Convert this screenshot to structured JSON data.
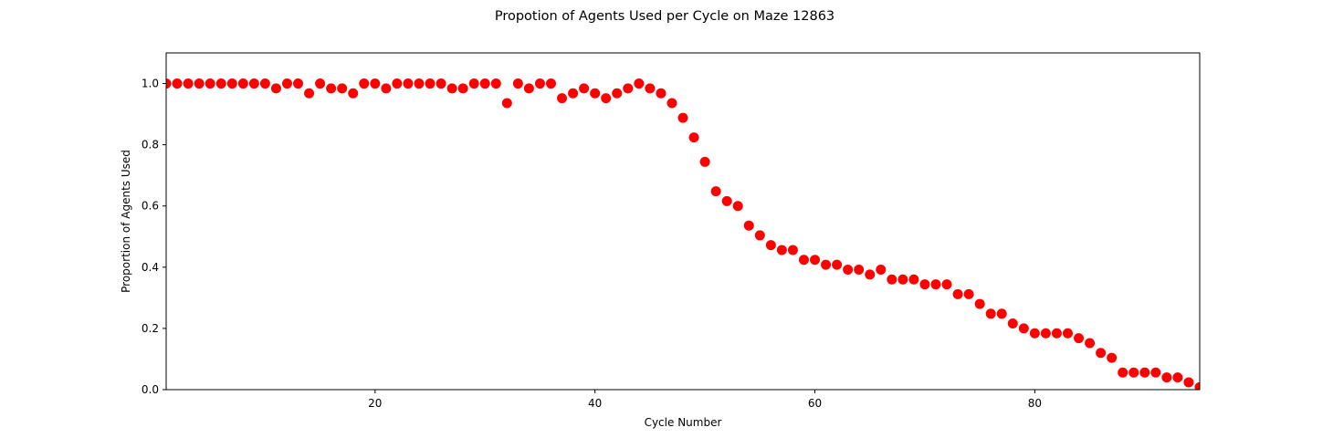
{
  "chart_data": {
    "type": "scatter",
    "title": "Propotion of Agents Used per Cycle on Maze 12863",
    "xlabel": "Cycle Number",
    "ylabel": "Proportion of Agents Used",
    "xlim": [
      1,
      95
    ],
    "ylim": [
      0,
      1.1
    ],
    "xticks": [
      20,
      40,
      60,
      80
    ],
    "yticks": [
      0.0,
      0.2,
      0.4,
      0.6,
      0.8,
      1.0
    ],
    "marker_color": "#ff0000",
    "grid": false,
    "series": [
      {
        "x": [
          1,
          2,
          3,
          4,
          5,
          6,
          7,
          8,
          9,
          10,
          11,
          12,
          13,
          14,
          15,
          16,
          17,
          18,
          19,
          20,
          21,
          22,
          23,
          24,
          25,
          26,
          27,
          28,
          29,
          30,
          31,
          32,
          33,
          34,
          35,
          36,
          37,
          38,
          39,
          40,
          41,
          42,
          43,
          44,
          45,
          46,
          47,
          48,
          49,
          50,
          51,
          52,
          53,
          54,
          55,
          56,
          57,
          58,
          59,
          60,
          61,
          62,
          63,
          64,
          65,
          66,
          67,
          68,
          69,
          70,
          71,
          72,
          73,
          74,
          75,
          76,
          77,
          78,
          79,
          80,
          81,
          82,
          83,
          84,
          85,
          86,
          87,
          88,
          89,
          90,
          91,
          92,
          93,
          94,
          95
        ],
        "y": [
          1.0,
          1.0,
          1.0,
          1.0,
          1.0,
          1.0,
          1.0,
          1.0,
          1.0,
          1.0,
          0.984,
          1.0,
          1.0,
          0.968,
          1.0,
          0.984,
          0.984,
          0.968,
          1.0,
          1.0,
          0.984,
          1.0,
          1.0,
          1.0,
          1.0,
          1.0,
          0.984,
          0.984,
          1.0,
          1.0,
          1.0,
          0.936,
          1.0,
          0.984,
          1.0,
          1.0,
          0.952,
          0.968,
          0.984,
          0.968,
          0.952,
          0.968,
          0.984,
          1.0,
          0.984,
          0.968,
          0.936,
          0.888,
          0.824,
          0.744,
          0.648,
          0.616,
          0.6,
          0.536,
          0.504,
          0.472,
          0.456,
          0.456,
          0.424,
          0.424,
          0.408,
          0.408,
          0.392,
          0.392,
          0.376,
          0.392,
          0.36,
          0.36,
          0.36,
          0.344,
          0.344,
          0.344,
          0.312,
          0.312,
          0.28,
          0.248,
          0.248,
          0.216,
          0.2,
          0.184,
          0.184,
          0.184,
          0.184,
          0.168,
          0.152,
          0.12,
          0.104,
          0.056,
          0.056,
          0.056,
          0.056,
          0.04,
          0.04,
          0.024,
          0.008
        ]
      }
    ]
  }
}
